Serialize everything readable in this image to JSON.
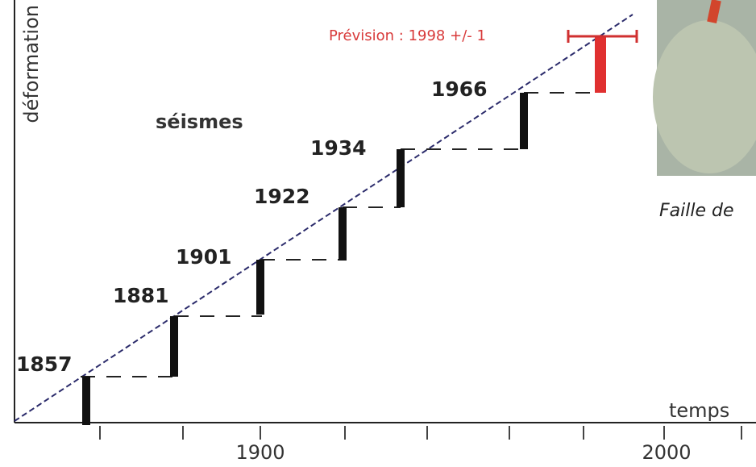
{
  "y_axis_label": "déformation",
  "x_axis_label": "temps",
  "x_ticks": [
    "1900",
    "2000"
  ],
  "label": "séismes",
  "prediction": "Prévision : 1998 +/- 1",
  "earthquakes": [
    "1857",
    "1881",
    "1901",
    "1922",
    "1934",
    "1966"
  ],
  "photo_caption": "Faille de"
}
